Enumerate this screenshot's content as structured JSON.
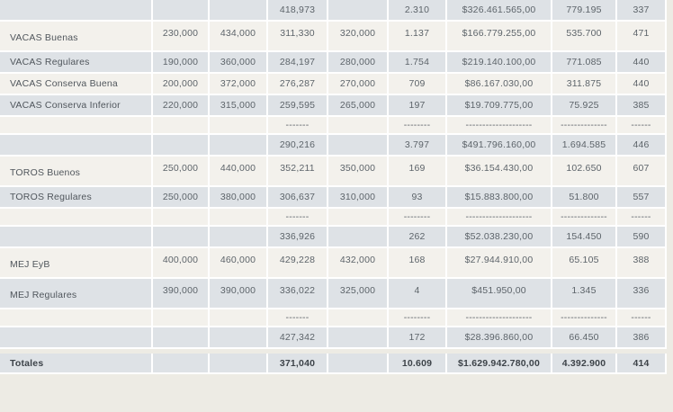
{
  "colors": {
    "row_gray": "#dee2e6",
    "row_cream": "#f3f1ec",
    "separator": "#ffffff",
    "page_background": "#edebe4",
    "number_text": "#5d646a",
    "label_text": "#50565c",
    "totals_text": "#3d4349"
  },
  "table": {
    "rows": [
      {
        "kind": "subtotal",
        "shade": "g",
        "tall": false,
        "cells": [
          "",
          "",
          "",
          "418,973",
          "",
          "2.310",
          "$326.461.565,00",
          "779.195",
          "337"
        ]
      },
      {
        "kind": "data",
        "shade": "c",
        "tall": true,
        "cells": [
          "VACAS Buenas",
          "230,000",
          "434,000",
          "311,330",
          "320,000",
          "1.137",
          "$166.779.255,00",
          "535.700",
          "471"
        ]
      },
      {
        "kind": "data",
        "shade": "g",
        "tall": false,
        "cells": [
          "VACAS Regulares",
          "190,000",
          "360,000",
          "284,197",
          "280,000",
          "1.754",
          "$219.140.100,00",
          "771.085",
          "440"
        ]
      },
      {
        "kind": "data",
        "shade": "c",
        "tall": false,
        "cells": [
          "VACAS Conserva Buena",
          "200,000",
          "372,000",
          "276,287",
          "270,000",
          "709",
          "$86.167.030,00",
          "311.875",
          "440"
        ]
      },
      {
        "kind": "data",
        "shade": "g",
        "tall": false,
        "cells": [
          "VACAS Conserva Inferior",
          "220,000",
          "315,000",
          "259,595",
          "265,000",
          "197",
          "$19.709.775,00",
          "75.925",
          "385"
        ]
      },
      {
        "kind": "dashes",
        "shade": "c",
        "tall": false,
        "cells": [
          "",
          "",
          "",
          "-------",
          "",
          "--------",
          "--------------------",
          "--------------",
          "------"
        ]
      },
      {
        "kind": "subtotal",
        "shade": "g",
        "tall": false,
        "cells": [
          "",
          "",
          "",
          "290,216",
          "",
          "3.797",
          "$491.796.160,00",
          "1.694.585",
          "446"
        ]
      },
      {
        "kind": "data",
        "shade": "c",
        "tall": true,
        "cells": [
          "TOROS Buenos",
          "250,000",
          "440,000",
          "352,211",
          "350,000",
          "169",
          "$36.154.430,00",
          "102.650",
          "607"
        ]
      },
      {
        "kind": "data",
        "shade": "g",
        "tall": false,
        "cells": [
          "TOROS Regulares",
          "250,000",
          "380,000",
          "306,637",
          "310,000",
          "93",
          "$15.883.800,00",
          "51.800",
          "557"
        ]
      },
      {
        "kind": "dashes",
        "shade": "c",
        "tall": false,
        "cells": [
          "",
          "",
          "",
          "-------",
          "",
          "--------",
          "--------------------",
          "--------------",
          "------"
        ]
      },
      {
        "kind": "subtotal",
        "shade": "g",
        "tall": false,
        "cells": [
          "",
          "",
          "",
          "336,926",
          "",
          "262",
          "$52.038.230,00",
          "154.450",
          "590"
        ]
      },
      {
        "kind": "data",
        "shade": "c",
        "tall": true,
        "cells": [
          "MEJ EyB",
          "400,000",
          "460,000",
          "429,228",
          "432,000",
          "168",
          "$27.944.910,00",
          "65.105",
          "388"
        ]
      },
      {
        "kind": "data",
        "shade": "g",
        "tall": true,
        "cells": [
          "MEJ Regulares",
          "390,000",
          "390,000",
          "336,022",
          "325,000",
          "4",
          "$451.950,00",
          "1.345",
          "336"
        ]
      },
      {
        "kind": "dashes",
        "shade": "c",
        "tall": false,
        "cells": [
          "",
          "",
          "",
          "-------",
          "",
          "--------",
          "--------------------",
          "--------------",
          "------"
        ]
      },
      {
        "kind": "subtotal",
        "shade": "g",
        "tall": false,
        "cells": [
          "",
          "",
          "",
          "427,342",
          "",
          "172",
          "$28.396.860,00",
          "66.450",
          "386"
        ]
      },
      {
        "kind": "totals",
        "shade": "g",
        "tall": false,
        "cells": [
          "Totales",
          "",
          "",
          "371,040",
          "",
          "10.609",
          "$1.629.942.780,00",
          "4.392.900",
          "414"
        ]
      }
    ]
  }
}
